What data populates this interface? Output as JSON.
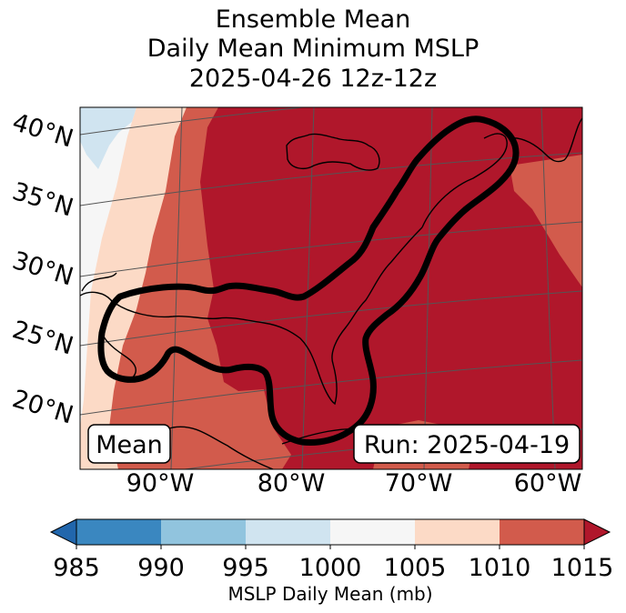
{
  "title": {
    "line1": "Ensemble Mean",
    "line2": "Daily Mean Minimum MSLP",
    "line3": "2025-04-26 12z-12z"
  },
  "map": {
    "lat_labels": [
      "40°N",
      "35°N",
      "30°N",
      "25°N",
      "20°N"
    ],
    "lon_labels": [
      "90°W",
      "80°W",
      "70°W",
      "60°W"
    ],
    "mean_box": "Mean",
    "run_box": "Run: 2025-04-19",
    "palette": {
      "c985": "#3a87c0",
      "c990": "#91c4de",
      "c995": "#d0e4f0",
      "c1000": "#f6f6f6",
      "c1005": "#fcdac6",
      "c1010": "#d25b4c",
      "c1015": "#b0172b"
    }
  },
  "colorbar": {
    "ticks": [
      "985",
      "990",
      "995",
      "1000",
      "1005",
      "1010",
      "1015"
    ],
    "label": "MSLP Daily Mean (mb)",
    "colors": [
      "#3a87c0",
      "#91c4de",
      "#d0e4f0",
      "#f6f6f6",
      "#fcdac6",
      "#d25b4c"
    ],
    "under_color": "#2166ac",
    "over_color": "#b0172b"
  }
}
